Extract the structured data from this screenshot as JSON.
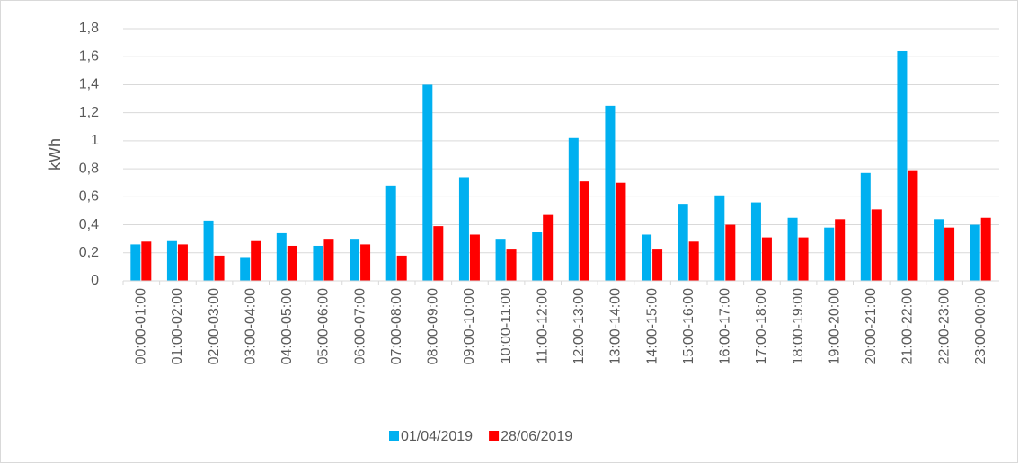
{
  "chart_data": {
    "type": "bar",
    "y_label": "kWh",
    "categories": [
      "00:00-01:00",
      "01:00-02:00",
      "02:00-03:00",
      "03:00-04:00",
      "04:00-05:00",
      "05:00-06:00",
      "06:00-07:00",
      "07:00-08:00",
      "08:00-09:00",
      "09:00-10:00",
      "10:00-11:00",
      "11:00-12:00",
      "12:00-13:00",
      "13:00-14:00",
      "14:00-15:00",
      "15:00-16:00",
      "16:00-17:00",
      "17:00-18:00",
      "18:00-19:00",
      "19:00-20:00",
      "20:00-21:00",
      "21:00-22:00",
      "22:00-23:00",
      "23:00-00:00"
    ],
    "series": [
      {
        "name": "01/04/2019",
        "color": "#00b0f0",
        "values": [
          0.26,
          0.29,
          0.43,
          0.17,
          0.34,
          0.25,
          0.3,
          0.68,
          1.4,
          0.74,
          0.3,
          0.35,
          1.02,
          1.25,
          0.33,
          0.55,
          0.61,
          0.56,
          0.45,
          0.38,
          0.77,
          1.64,
          0.44,
          0.4
        ]
      },
      {
        "name": "28/06/2019",
        "color": "#ff0000",
        "values": [
          0.28,
          0.26,
          0.18,
          0.29,
          0.25,
          0.3,
          0.26,
          0.18,
          0.39,
          0.33,
          0.23,
          0.47,
          0.71,
          0.7,
          0.23,
          0.28,
          0.4,
          0.31,
          0.31,
          0.44,
          0.51,
          0.79,
          0.38,
          0.45
        ]
      }
    ],
    "ylim": [
      0,
      1.8
    ],
    "yticks": [
      0,
      {
        "value": 0.2,
        "label": "0,2"
      },
      {
        "value": 0.4,
        "label": "0,4"
      },
      {
        "value": 0.6,
        "label": "0,6"
      },
      {
        "value": 0.8,
        "label": "0,8"
      },
      1,
      {
        "value": 1.2,
        "label": "1,2"
      },
      {
        "value": 1.4,
        "label": "1,4"
      },
      {
        "value": 1.6,
        "label": "1,6"
      },
      {
        "value": 1.8,
        "label": "1,8"
      }
    ],
    "grid": true,
    "legend": "bottom"
  }
}
